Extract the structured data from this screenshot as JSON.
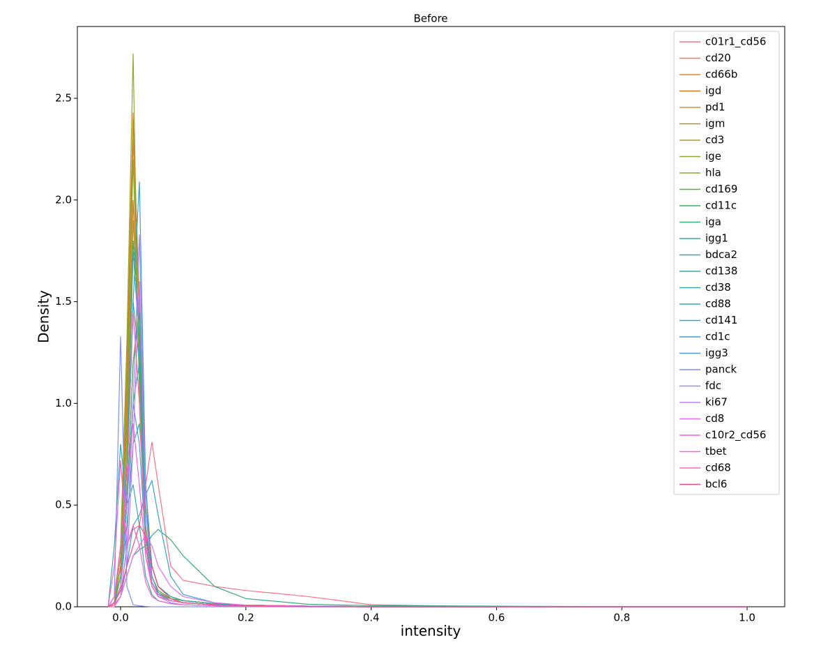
{
  "chart_data": {
    "type": "line",
    "title": "Before",
    "x_label": "intensity",
    "y_label": "Density",
    "x": [
      -0.02,
      -0.01,
      0,
      0.01,
      0.02,
      0.03,
      0.04,
      0.05,
      0.06,
      0.08,
      0.1,
      0.15,
      0.2,
      0.3,
      0.4,
      0.6,
      0.8,
      1.0
    ],
    "xlim": [
      -0.069,
      1.06
    ],
    "xticks": [
      {
        "value": 0,
        "label": "0.0"
      },
      0.2,
      0.4,
      0.6,
      0.8,
      {
        "value": 1,
        "label": "1.0"
      }
    ],
    "ylim": [
      0,
      2.853
    ],
    "yticks": [
      {
        "value": 0,
        "label": "0.0"
      },
      0.5,
      {
        "value": 1,
        "label": "1.0"
      },
      1.5,
      {
        "value": 2,
        "label": "2.0"
      },
      2.5
    ],
    "grid": false,
    "legend": "upper right",
    "series": [
      {
        "name": "c01r1_cd56",
        "color": "#f77189",
        "values": [
          0,
          0,
          0.05,
          0.3,
          0.38,
          0.4,
          0.6,
          0.81,
          0.6,
          0.2,
          0.13,
          0.1,
          0.08,
          0.05,
          0.01,
          0,
          0,
          0
        ]
      },
      {
        "name": "cd20",
        "color": "#f7754f",
        "values": [
          0,
          0.02,
          0.25,
          1.2,
          2.43,
          1.1,
          0.3,
          0.12,
          0.07,
          0.04,
          0.03,
          0.015,
          0.008,
          0.003,
          0.001,
          0,
          0,
          0
        ]
      },
      {
        "name": "cd66b",
        "color": "#e8862c",
        "values": [
          0,
          0.01,
          0.2,
          1.0,
          2.3,
          1.4,
          0.35,
          0.12,
          0.06,
          0.04,
          0.03,
          0.015,
          0.008,
          0.003,
          0.001,
          0,
          0,
          0
        ]
      },
      {
        "name": "igd",
        "color": "#d4741c",
        "values": [
          0,
          0.01,
          0.2,
          0.9,
          2.0,
          1.2,
          0.3,
          0.1,
          0.05,
          0.03,
          0.02,
          0.01,
          0.005,
          0.002,
          0,
          0,
          0,
          0
        ]
      },
      {
        "name": "pd1",
        "color": "#c9923a",
        "values": [
          0,
          0.01,
          0.15,
          0.8,
          1.9,
          1.3,
          0.35,
          0.12,
          0.06,
          0.03,
          0.02,
          0.01,
          0.005,
          0.002,
          0,
          0,
          0,
          0
        ]
      },
      {
        "name": "igm",
        "color": "#bb8c1c",
        "values": [
          0,
          0.01,
          0.2,
          1.1,
          2.4,
          1.5,
          0.3,
          0.1,
          0.05,
          0.03,
          0.02,
          0.01,
          0.005,
          0.002,
          0,
          0,
          0,
          0
        ]
      },
      {
        "name": "cd3",
        "color": "#ae9d31",
        "values": [
          0,
          0.01,
          0.1,
          0.5,
          1.2,
          1.5,
          0.6,
          0.2,
          0.1,
          0.05,
          0.03,
          0.015,
          0.008,
          0.003,
          0.001,
          0,
          0,
          0
        ]
      },
      {
        "name": "ige",
        "color": "#97a431",
        "values": [
          0,
          0.02,
          0.3,
          1.3,
          2.72,
          1.0,
          0.25,
          0.1,
          0.05,
          0.03,
          0.02,
          0.01,
          0.005,
          0.002,
          0,
          0,
          0,
          0
        ]
      },
      {
        "name": "hla",
        "color": "#86a831",
        "values": [
          0,
          0.01,
          0.2,
          1.0,
          2.2,
          1.2,
          0.3,
          0.12,
          0.06,
          0.04,
          0.03,
          0.015,
          0.008,
          0.003,
          0.001,
          0,
          0,
          0
        ]
      },
      {
        "name": "cd169",
        "color": "#50b131",
        "values": [
          0,
          0.01,
          0.15,
          0.7,
          1.8,
          1.4,
          0.4,
          0.15,
          0.08,
          0.04,
          0.03,
          0.015,
          0.008,
          0.003,
          0.001,
          0,
          0,
          0
        ]
      },
      {
        "name": "cd11c",
        "color": "#33b15e",
        "values": [
          0,
          0.01,
          0.1,
          0.5,
          1.2,
          1.45,
          0.5,
          0.2,
          0.1,
          0.05,
          0.03,
          0.015,
          0.008,
          0.003,
          0.001,
          0,
          0,
          0
        ]
      },
      {
        "name": "iga",
        "color": "#34ae7d",
        "values": [
          0,
          0.01,
          0.05,
          0.15,
          0.25,
          0.28,
          0.3,
          0.35,
          0.38,
          0.33,
          0.25,
          0.1,
          0.04,
          0.012,
          0.006,
          0.003,
          0.001,
          0
        ]
      },
      {
        "name": "igg1",
        "color": "#35ac8f",
        "values": [
          0,
          0.01,
          0.1,
          0.6,
          1.5,
          1.2,
          0.35,
          0.12,
          0.06,
          0.03,
          0.02,
          0.01,
          0.005,
          0.002,
          0,
          0,
          0,
          0
        ]
      },
      {
        "name": "bdca2",
        "color": "#36ab9b",
        "values": [
          0,
          0.02,
          0.15,
          0.5,
          1.0,
          1.2,
          0.5,
          0.2,
          0.1,
          0.05,
          0.03,
          0.015,
          0.008,
          0.003,
          0.001,
          0,
          0,
          0
        ]
      },
      {
        "name": "cd138",
        "color": "#37aaa4",
        "values": [
          0,
          0.02,
          0.1,
          0.4,
          0.8,
          0.9,
          0.5,
          0.2,
          0.1,
          0.05,
          0.03,
          0.015,
          0.008,
          0.003,
          0.001,
          0,
          0,
          0
        ]
      },
      {
        "name": "cd38",
        "color": "#38a8ae",
        "values": [
          0,
          0.3,
          0.8,
          0.5,
          0.6,
          0.4,
          0.15,
          0.06,
          0.03,
          0.015,
          0.01,
          0.005,
          0.002,
          0.001,
          0,
          0,
          0,
          0
        ]
      },
      {
        "name": "cd88",
        "color": "#39a6b8",
        "values": [
          0,
          0.01,
          0.1,
          0.6,
          1.75,
          1.3,
          0.35,
          0.12,
          0.06,
          0.03,
          0.02,
          0.01,
          0.005,
          0.002,
          0,
          0,
          0,
          0
        ]
      },
      {
        "name": "cd141",
        "color": "#3aa3c3",
        "values": [
          0,
          0.01,
          0.05,
          0.2,
          0.4,
          0.45,
          0.55,
          0.62,
          0.45,
          0.15,
          0.06,
          0.02,
          0.008,
          0.003,
          0.001,
          0,
          0,
          0
        ]
      },
      {
        "name": "cd1c",
        "color": "#3d9fd2",
        "values": [
          0,
          0.01,
          0.1,
          0.6,
          1.5,
          2.09,
          0.6,
          0.15,
          0.07,
          0.03,
          0.02,
          0.01,
          0.005,
          0.002,
          0,
          0,
          0,
          0
        ]
      },
      {
        "name": "igg3",
        "color": "#4f99e5",
        "values": [
          0,
          0.01,
          0.1,
          0.5,
          1.0,
          0.8,
          0.3,
          0.12,
          0.06,
          0.03,
          0.02,
          0.01,
          0.005,
          0.002,
          0,
          0,
          0,
          0
        ]
      },
      {
        "name": "panck",
        "color": "#7d8ff4",
        "values": [
          0,
          0.05,
          1.33,
          0.1,
          0.01,
          0.005,
          0.002,
          0,
          0,
          0,
          0,
          0,
          0,
          0,
          0,
          0,
          0,
          0
        ]
      },
      {
        "name": "fdc",
        "color": "#a184f4",
        "values": [
          0,
          0.01,
          0.05,
          0.3,
          1.0,
          1.83,
          0.5,
          0.1,
          0.05,
          0.02,
          0.01,
          0.005,
          0.002,
          0,
          0,
          0,
          0,
          0
        ]
      },
      {
        "name": "ki67",
        "color": "#bb7bf4",
        "values": [
          0,
          0.01,
          0.05,
          0.2,
          0.8,
          1.6,
          0.5,
          0.12,
          0.06,
          0.03,
          0.02,
          0.01,
          0.005,
          0.002,
          0,
          0,
          0,
          0
        ]
      },
      {
        "name": "cd8",
        "color": "#e36ef0",
        "values": [
          0,
          0.01,
          0.05,
          0.15,
          0.25,
          0.3,
          0.35,
          0.3,
          0.2,
          0.1,
          0.05,
          0.02,
          0.008,
          0.003,
          0.001,
          0,
          0,
          0
        ]
      },
      {
        "name": "c10r2_cd56",
        "color": "#f35fe4",
        "values": [
          0,
          0.05,
          0.3,
          0.6,
          0.9,
          0.6,
          0.25,
          0.1,
          0.05,
          0.03,
          0.02,
          0.01,
          0.005,
          0.002,
          0,
          0,
          0,
          0
        ]
      },
      {
        "name": "tbet",
        "color": "#f564c9",
        "values": [
          0,
          0.2,
          0.72,
          0.3,
          0.4,
          0.3,
          0.12,
          0.05,
          0.03,
          0.015,
          0.01,
          0.005,
          0.002,
          0,
          0,
          0,
          0,
          0
        ]
      },
      {
        "name": "cd68",
        "color": "#f669b1",
        "values": [
          0,
          0.01,
          0.1,
          0.6,
          1.45,
          1.0,
          0.3,
          0.1,
          0.05,
          0.03,
          0.02,
          0.01,
          0.005,
          0.002,
          0,
          0,
          0,
          0
        ]
      },
      {
        "name": "bcl6",
        "color": "#ec4d7f",
        "values": [
          0,
          0.02,
          0.08,
          0.2,
          0.3,
          0.4,
          0.35,
          0.2,
          0.1,
          0.04,
          0.02,
          0.01,
          0.005,
          0.002,
          0,
          0,
          0,
          0
        ]
      }
    ]
  }
}
